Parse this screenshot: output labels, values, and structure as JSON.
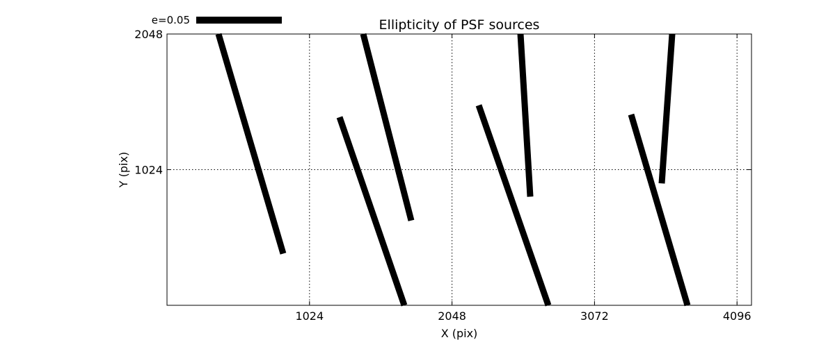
{
  "chart_data": {
    "type": "quiver",
    "title": "Ellipticity of PSF sources",
    "xlabel": "X (pix)",
    "ylabel": "Y (pix)",
    "xlim": [
      0,
      4200
    ],
    "ylim": [
      0,
      2048
    ],
    "xticks": [
      1024,
      2048,
      3072,
      4096
    ],
    "xtick_labels": [
      "1024",
      "2048",
      "3072",
      "4096"
    ],
    "yticks": [
      1024,
      2048
    ],
    "ytick_labels": [
      "1024",
      "2048"
    ],
    "grid": true,
    "legend": {
      "label": "e=0.05",
      "value": 0.05,
      "placement": "top-left"
    },
    "color": "#000000",
    "segments": [
      {
        "x0": 370,
        "y0": 2048,
        "x1": 835,
        "y1": 390
      },
      {
        "x0": 1240,
        "y0": 1420,
        "x1": 1705,
        "y1": 0
      },
      {
        "x0": 1410,
        "y0": 2048,
        "x1": 1755,
        "y1": 640
      },
      {
        "x0": 2240,
        "y0": 1510,
        "x1": 2740,
        "y1": 0
      },
      {
        "x0": 2540,
        "y0": 2048,
        "x1": 2610,
        "y1": 820
      },
      {
        "x0": 3335,
        "y0": 1440,
        "x1": 3740,
        "y1": 0
      },
      {
        "x0": 3630,
        "y0": 2048,
        "x1": 3555,
        "y1": 920
      }
    ]
  }
}
